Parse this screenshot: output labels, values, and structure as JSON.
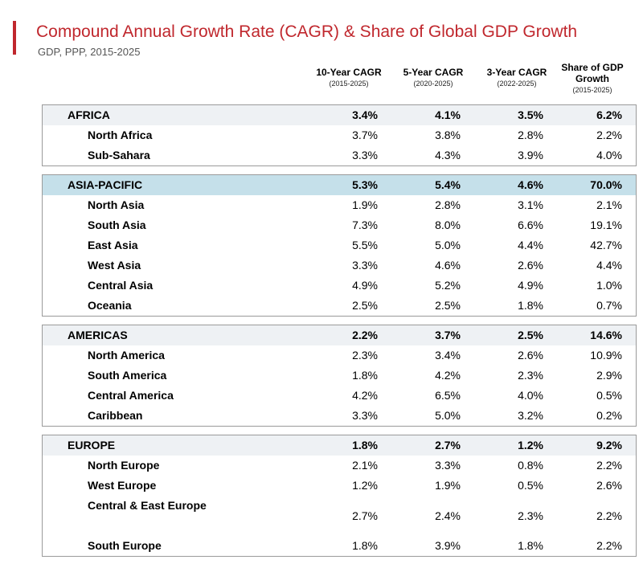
{
  "title": "Compound Annual Growth Rate (CAGR) & Share of Global GDP Growth",
  "subtitle": "GDP, PPP, 2015-2025",
  "chart_data": {
    "type": "table",
    "columns": [
      {
        "label": "10-Year CAGR",
        "sub": "(2015-2025)"
      },
      {
        "label": "5-Year CAGR",
        "sub": "(2020-2025)"
      },
      {
        "label": "3-Year CAGR",
        "sub": "(2022-2025)"
      },
      {
        "label": "Share of GDP Growth",
        "sub": "(2015-2025)"
      }
    ],
    "groups": [
      {
        "name": "AFRICA",
        "highlight": false,
        "values": [
          "3.4%",
          "4.1%",
          "3.5%",
          "6.2%"
        ],
        "rows": [
          {
            "name": "North Africa",
            "values": [
              "3.7%",
              "3.8%",
              "2.8%",
              "2.2%"
            ]
          },
          {
            "name": "Sub-Sahara",
            "values": [
              "3.3%",
              "4.3%",
              "3.9%",
              "4.0%"
            ]
          }
        ]
      },
      {
        "name": "ASIA-PACIFIC",
        "highlight": true,
        "values": [
          "5.3%",
          "5.4%",
          "4.6%",
          "70.0%"
        ],
        "rows": [
          {
            "name": "North Asia",
            "values": [
              "1.9%",
              "2.8%",
              "3.1%",
              "2.1%"
            ]
          },
          {
            "name": "South Asia",
            "values": [
              "7.3%",
              "8.0%",
              "6.6%",
              "19.1%"
            ]
          },
          {
            "name": "East Asia",
            "values": [
              "5.5%",
              "5.0%",
              "4.4%",
              "42.7%"
            ]
          },
          {
            "name": "West Asia",
            "values": [
              "3.3%",
              "4.6%",
              "2.6%",
              "4.4%"
            ]
          },
          {
            "name": "Central Asia",
            "values": [
              "4.9%",
              "5.2%",
              "4.9%",
              "1.0%"
            ]
          },
          {
            "name": "Oceania",
            "values": [
              "2.5%",
              "2.5%",
              "1.8%",
              "0.7%"
            ]
          }
        ]
      },
      {
        "name": "AMERICAS",
        "highlight": false,
        "values": [
          "2.2%",
          "3.7%",
          "2.5%",
          "14.6%"
        ],
        "rows": [
          {
            "name": "North America",
            "values": [
              "2.3%",
              "3.4%",
              "2.6%",
              "10.9%"
            ]
          },
          {
            "name": "South America",
            "values": [
              "1.8%",
              "4.2%",
              "2.3%",
              "2.9%"
            ]
          },
          {
            "name": "Central America",
            "values": [
              "4.2%",
              "6.5%",
              "4.0%",
              "0.5%"
            ]
          },
          {
            "name": "Caribbean",
            "values": [
              "3.3%",
              "5.0%",
              "3.2%",
              "0.2%"
            ]
          }
        ]
      },
      {
        "name": "EUROPE",
        "highlight": false,
        "values": [
          "1.8%",
          "2.7%",
          "1.2%",
          "9.2%"
        ],
        "rows": [
          {
            "name": "North Europe",
            "values": [
              "2.1%",
              "3.3%",
              "0.8%",
              "2.2%"
            ]
          },
          {
            "name": "West Europe",
            "values": [
              "1.2%",
              "1.9%",
              "0.5%",
              "2.6%"
            ]
          },
          {
            "name": "Central & East Europe",
            "values": [
              "2.7%",
              "2.4%",
              "2.3%",
              "2.2%"
            ]
          },
          {
            "name": "South Europe",
            "values": [
              "1.8%",
              "3.9%",
              "1.8%",
              "2.2%"
            ]
          }
        ]
      }
    ]
  },
  "colors": {
    "accent": "#c0272d",
    "highlight": "#c5e0ea",
    "header_row": "#eef1f4"
  }
}
